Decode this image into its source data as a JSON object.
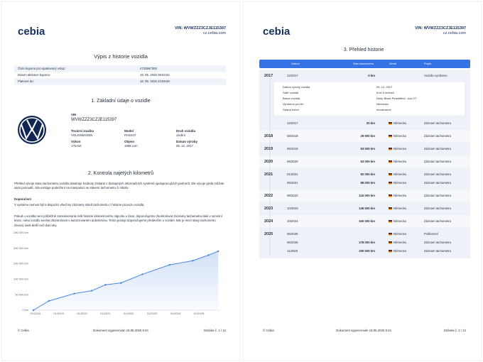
{
  "page1": {
    "logo": "cebia",
    "vin": "VIN: WVWZZZ3CZJE115397",
    "web": "cz.cebia.com",
    "title": "Výpis z historie vozidla",
    "coupon": [
      {
        "label": "Číslo kuponu pro opakovaný vstup:",
        "value": "4733967300"
      },
      {
        "label": "Datum aktivace kuponu:",
        "value": "19. 05. 2026 09:53:52"
      },
      {
        "label": "Platnost do:",
        "value": "18. 06. 2026 23:59:59"
      }
    ],
    "section1": "1. Základní údaje o vozidle",
    "vehicle": {
      "vin_label": "VIN",
      "vin": "WVWZZZ3CZJE115397",
      "fields": [
        {
          "label": "Tovární značka",
          "value": "VOLKSWAGEN"
        },
        {
          "label": "Model",
          "value": "PASSAT"
        },
        {
          "label": "Druh vozidla",
          "value": "osobní"
        },
        {
          "label": "Výkon",
          "value": "176 kW"
        },
        {
          "label": "Objem",
          "value": "1968 ccm"
        },
        {
          "label": "Datum výroby",
          "value": "05. 12. 2017"
        }
      ]
    },
    "section2": "2. Kontrola najetých kilometrů",
    "intro": "Přehled vývoje stavu tachometru vozidla obsahuje hodnoty získané z dostupných informačních systémů spolupracujících partnerů. Dle vývoje grafu můžete sami posoudit, zda existuje podezření na manipulaci se stavem tachometru či nikoliv.",
    "recommendation_title": "Doporučení",
    "recommendation": [
      "V systému nemusí být k dispozici všechny záznamy stavů tachometru z historie provozu vozidla.",
      "Pokud u vozidla není průběžně zaznamenaná celá historie kilometrového nájezdu v čase, doporučujeme zkontrolovat záznamy tachometru také v servisní knize, nebo vozidlo nechat zkontrolovat v autorizovaném autoservisu. Tento postup doporučujeme především u vozidel, kde je mezi stavy tachometru časový úsek delší než dva roky."
    ],
    "footer": {
      "left": "© Cebia",
      "center": "Dokument vygenerován 19.05.2026 9:44",
      "right": "Stránka č. 1 / 12"
    }
  },
  "chart_data": {
    "type": "line",
    "x": [
      "2017-12",
      "2017-12",
      "2018-08",
      "2019-09",
      "2020-06",
      "2021-01",
      "2021-09",
      "2022-08",
      "2023-10",
      "2024-10",
      "2025-06",
      "2025-11"
    ],
    "values": [
      0,
      20,
      29900,
      53500,
      63000,
      82000,
      88000,
      116000,
      146500,
      160000,
      178000,
      190500
    ],
    "color": "#4a86e0",
    "area": true,
    "xlim": [
      "2017-12",
      "2025-12"
    ],
    "xticks": [
      {
        "value": "2018-01",
        "label": "01/2018"
      },
      {
        "value": "2019-01",
        "label": "01/2019"
      },
      {
        "value": "2020-01",
        "label": "01/2020"
      },
      {
        "value": "2021-01",
        "label": "01/2021"
      },
      {
        "value": "2022-01",
        "label": "01/2022"
      },
      {
        "value": "2023-01",
        "label": "01/2023"
      },
      {
        "value": "2024-01",
        "label": "01/2024"
      },
      {
        "value": "2025-01",
        "label": "01/2025"
      }
    ],
    "ylim": [
      0,
      250000
    ],
    "yticks": [
      {
        "value": 0,
        "label": "0 km"
      },
      {
        "value": 50000,
        "label": "50 000 km"
      },
      {
        "value": 100000,
        "label": "100 000 km"
      },
      {
        "value": 150000,
        "label": "150 000 km"
      },
      {
        "value": 200000,
        "label": "200 000 km"
      },
      {
        "value": 250000,
        "label": "250 000 km"
      }
    ],
    "grid": false
  },
  "page2": {
    "logo": "cebia",
    "vin": "VIN: WVWZZZ3CZJE115397",
    "web": "cz.cebia.com",
    "title": "3. Přehled historie",
    "header": {
      "date": "Datum",
      "km": "Stav tachometru",
      "country": "Země",
      "desc": "Popis"
    },
    "rows": [
      {
        "year": "2017",
        "entries": [
          {
            "date": "12/2017",
            "km": "0 km",
            "desc": "Vozidlo vyrobeno",
            "details": [
              {
                "label": "Datum výroby vozidla",
                "value": "05. 12. 2017"
              },
              {
                "label": "Stáří vozidla",
                "value": "8 let 5 měsíců"
              },
              {
                "label": "Barva vozidla",
                "value": "Deep Black Pearleffect - kód 2T"
              },
              {
                "label": "Vyrobeno pro trh",
                "value": "Německo"
              },
              {
                "label": "Strana řízení",
                "value": "levostranné"
              }
            ]
          },
          {
            "date": "12/2017",
            "km": "20 km",
            "country": "Německo",
            "desc": "Záznam tachometru"
          }
        ]
      },
      {
        "year": "2018",
        "entries": [
          {
            "date": "08/2018",
            "km": "29 900 km",
            "country": "Německo",
            "desc": "Záznam tachometru"
          }
        ]
      },
      {
        "year": "2019",
        "entries": [
          {
            "date": "09/2019",
            "km": "53 500 km",
            "country": "Německo",
            "desc": "Záznam tachometru"
          }
        ]
      },
      {
        "year": "2020",
        "entries": [
          {
            "date": "06/2020",
            "km": "63 000 km",
            "country": "Německo",
            "desc": "Záznam tachometru"
          }
        ]
      },
      {
        "year": "2021",
        "entries": [
          {
            "date": "01/2021",
            "km": "82 000 km",
            "country": "Německo",
            "desc": "Záznam tachometru"
          },
          {
            "date": "09/2021",
            "km": "88 000 km",
            "country": "Německo",
            "desc": "Záznam tachometru"
          }
        ]
      },
      {
        "year": "2022",
        "entries": [
          {
            "date": "08/2022",
            "km": "116 000 km",
            "country": "Německo",
            "desc": "Záznam tachometru"
          }
        ]
      },
      {
        "year": "2023",
        "entries": [
          {
            "date": "10/2023",
            "km": "146 500 km",
            "country": "Německo",
            "desc": "Záznam tachometru"
          }
        ]
      },
      {
        "year": "2024",
        "entries": [
          {
            "date": "10/2024",
            "km": "160 000 km",
            "country": "Německo",
            "desc": "Záznam tachometru"
          }
        ]
      },
      {
        "year": "2025",
        "entries": [
          {
            "date": "06/2025",
            "country": "Německo",
            "desc": "Poškození"
          },
          {
            "date": "06/2025",
            "km": "178 000 km",
            "country": "Německo",
            "desc": "Záznam tachometru"
          },
          {
            "date": "11/2025",
            "km": "190 500 km",
            "country": "Německo",
            "desc": "Záznam tachometru"
          }
        ]
      }
    ],
    "footer": {
      "left": "© Cebia",
      "center": "Dokument vygenerován 19.05.2026 9:44",
      "right": "Stránka č. 2 / 12"
    }
  }
}
